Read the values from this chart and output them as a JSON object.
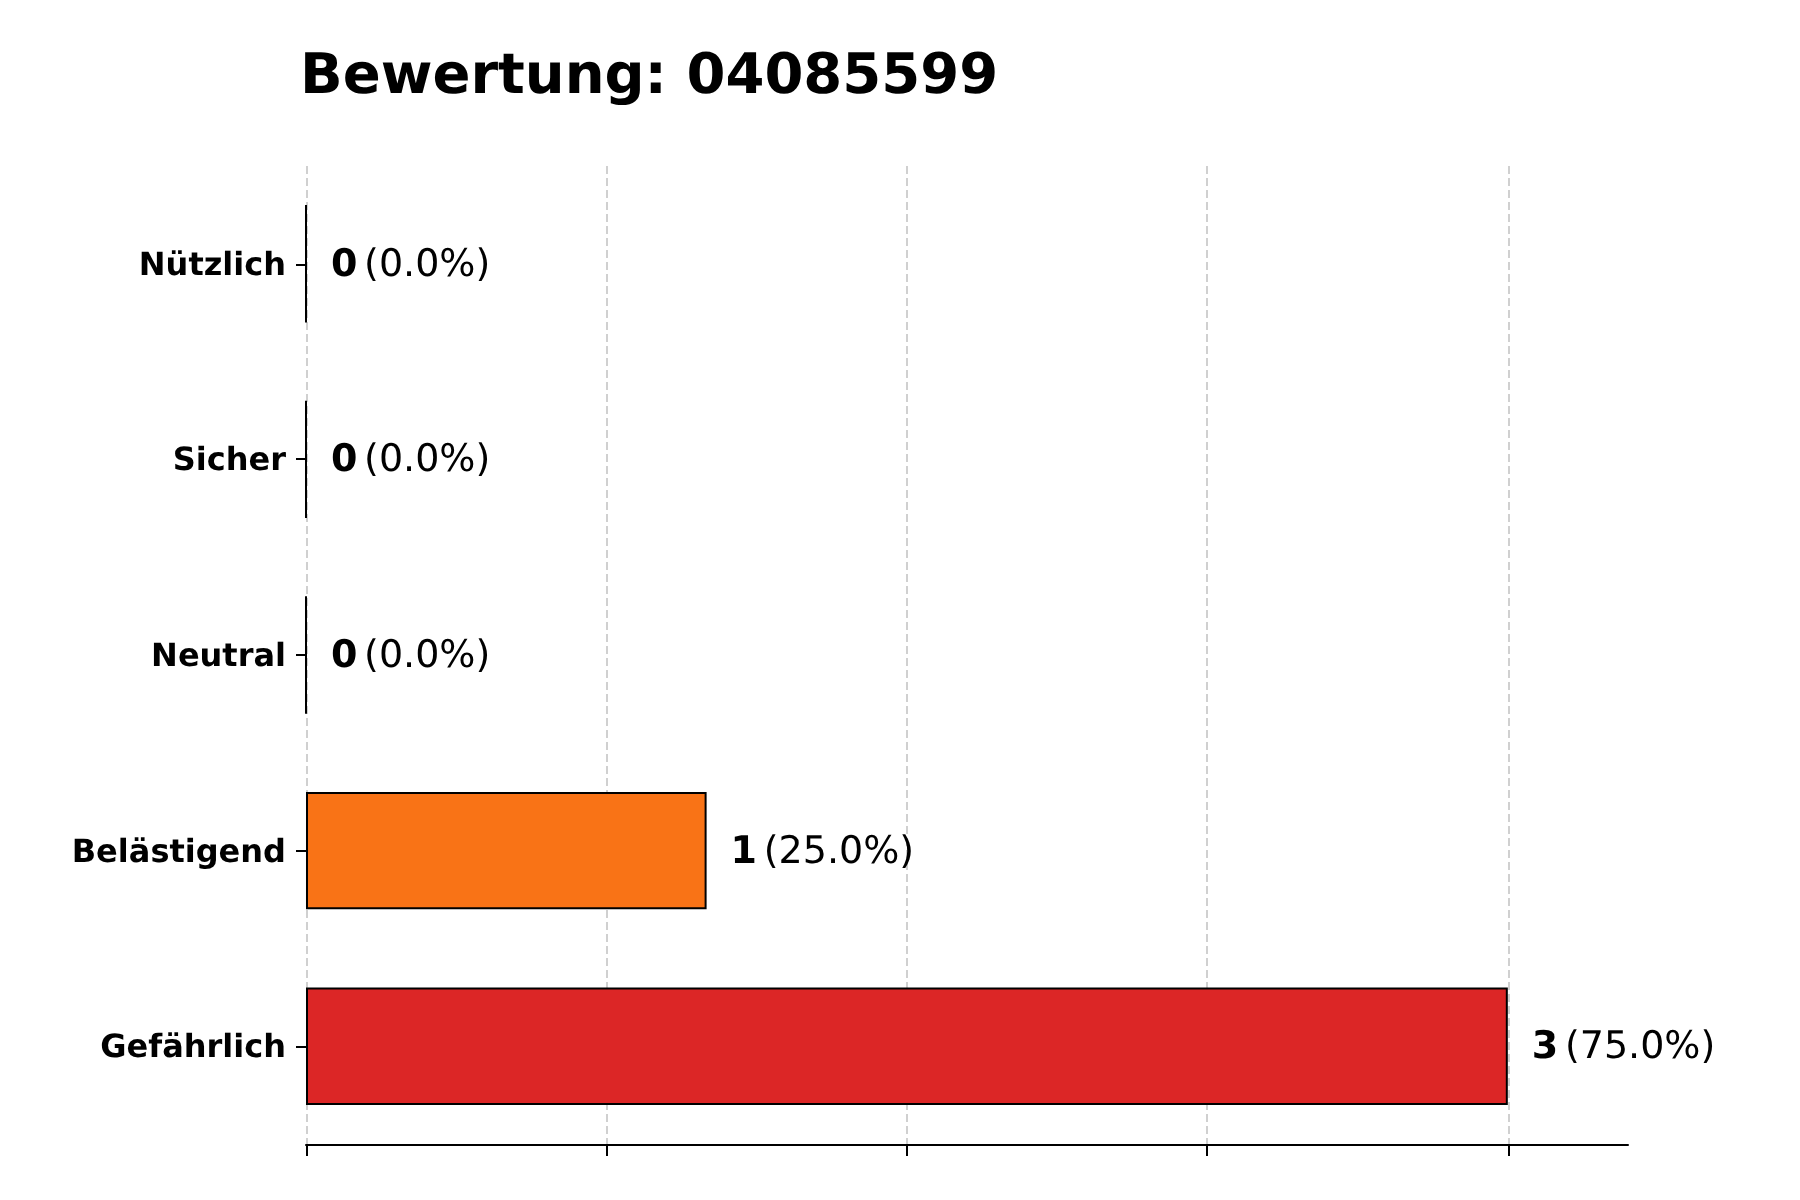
{
  "chart_data": {
    "type": "bar",
    "orientation": "horizontal",
    "title": "Bewertung: 04085599",
    "categories": [
      "Nützlich",
      "Sicher",
      "Neutral",
      "Belästigend",
      "Gefährlich"
    ],
    "values": [
      0,
      0,
      0,
      1,
      3
    ],
    "colors": [
      "#000000",
      "#000000",
      "#000000",
      "#f97316",
      "#dc2626"
    ],
    "value_labels": [
      "0 (0.0%)",
      "0 (0.0%)",
      "0 (0.0%)",
      "1 (25.0%)",
      "3 (75.0%)"
    ],
    "xlim": [
      0,
      3.3
    ],
    "xticks": [
      {
        "value": 0,
        "label": null
      },
      {
        "value": 0.75,
        "label": null
      },
      {
        "value": 1.5,
        "label": null
      },
      {
        "value": 2.25,
        "label": null
      },
      {
        "value": 3,
        "label": null
      }
    ],
    "tick_labels": "y",
    "grid": "x"
  }
}
